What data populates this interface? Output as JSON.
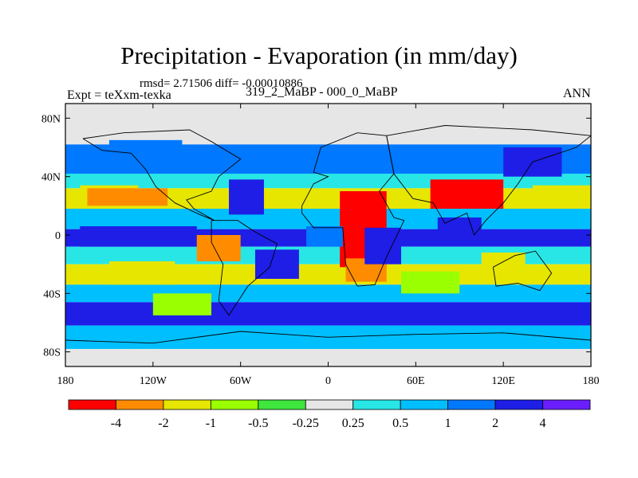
{
  "chart_data": {
    "type": "heatmap",
    "title": "Precipitation - Evaporation (in mm/day)",
    "subtitle": "rmsd= 2.71506 diff= -0.00010886",
    "left_label": "Expt = teXxm-texka",
    "center_label": "319_2_MaBP - 000_0_MaBP",
    "right_label": "ANN",
    "x_ticks": [
      {
        "value": -180,
        "label": "180"
      },
      {
        "value": -120,
        "label": "120W"
      },
      {
        "value": -60,
        "label": "60W"
      },
      {
        "value": 0,
        "label": "0"
      },
      {
        "value": 60,
        "label": "60E"
      },
      {
        "value": 120,
        "label": "120E"
      },
      {
        "value": 180,
        "label": "180"
      }
    ],
    "y_ticks": [
      {
        "value": 80,
        "label": "80N"
      },
      {
        "value": 40,
        "label": "40N"
      },
      {
        "value": 0,
        "label": "0"
      },
      {
        "value": -40,
        "label": "40S"
      },
      {
        "value": -80,
        "label": "80S"
      }
    ],
    "xlim": [
      -180,
      180
    ],
    "ylim": [
      -90,
      90
    ],
    "colorbar": {
      "colors": [
        "#ff0000",
        "#ff8c00",
        "#e6e600",
        "#9aff00",
        "#3ee63e",
        "#e6e6e6",
        "#28e6e6",
        "#00bfff",
        "#0078ff",
        "#1e1ee6",
        "#6a1eff"
      ],
      "levels": [
        "-4",
        "-2",
        "-1",
        "-0.5",
        "-0.25",
        "0.25",
        "0.5",
        "1",
        "2",
        "4"
      ]
    },
    "field_bands": [
      {
        "lat_min": 62,
        "lat_max": 90,
        "value": 0.0
      },
      {
        "lat_min": 42,
        "lat_max": 62,
        "value": 1.2
      },
      {
        "lat_min": 32,
        "lat_max": 42,
        "value": 0.4
      },
      {
        "lat_min": 18,
        "lat_max": 32,
        "value": -1.5
      },
      {
        "lat_min": 4,
        "lat_max": 18,
        "value": 0.8
      },
      {
        "lat_min": -8,
        "lat_max": 4,
        "value": 3.0
      },
      {
        "lat_min": -20,
        "lat_max": -8,
        "value": 0.3
      },
      {
        "lat_min": -34,
        "lat_max": -20,
        "value": -1.2
      },
      {
        "lat_min": -46,
        "lat_max": -34,
        "value": 0.6
      },
      {
        "lat_min": -62,
        "lat_max": -46,
        "value": 2.5
      },
      {
        "lat_min": -78,
        "lat_max": -62,
        "value": 0.8
      },
      {
        "lat_min": -90,
        "lat_max": -78,
        "value": 0.0
      }
    ],
    "field_regions": [
      {
        "lon": [
          -170,
          -130
        ],
        "lat": [
          18,
          34
        ],
        "value": -1.5
      },
      {
        "lon": [
          -165,
          -110
        ],
        "lat": [
          20,
          32
        ],
        "value": -2.5
      },
      {
        "lon": [
          -150,
          -105
        ],
        "lat": [
          -34,
          -18
        ],
        "value": -1.2
      },
      {
        "lon": [
          -50,
          -20
        ],
        "lat": [
          -30,
          -10
        ],
        "value": 3.0
      },
      {
        "lon": [
          -68,
          -44
        ],
        "lat": [
          14,
          38
        ],
        "value": 3.0
      },
      {
        "lon": [
          -150,
          -100
        ],
        "lat": [
          48,
          65
        ],
        "value": 1.5
      },
      {
        "lon": [
          -170,
          -90
        ],
        "lat": [
          -8,
          6
        ],
        "value": 3.0
      },
      {
        "lon": [
          8,
          40
        ],
        "lat": [
          -22,
          30
        ],
        "value": -4.5
      },
      {
        "lon": [
          12,
          40
        ],
        "lat": [
          -32,
          -16
        ],
        "value": -3.0
      },
      {
        "lon": [
          25,
          50
        ],
        "lat": [
          -20,
          5
        ],
        "value": 3.5
      },
      {
        "lon": [
          70,
          120
        ],
        "lat": [
          18,
          38
        ],
        "value": -4.5
      },
      {
        "lon": [
          75,
          105
        ],
        "lat": [
          -4,
          12
        ],
        "value": 3.0
      },
      {
        "lon": [
          105,
          135
        ],
        "lat": [
          -25,
          -12
        ],
        "value": -2.0
      },
      {
        "lon": [
          140,
          180
        ],
        "lat": [
          20,
          34
        ],
        "value": -2.0
      },
      {
        "lon": [
          -15,
          10
        ],
        "lat": [
          -8,
          6
        ],
        "value": 1.5
      },
      {
        "lon": [
          50,
          90
        ],
        "lat": [
          -40,
          -25
        ],
        "value": -0.7
      },
      {
        "lon": [
          -90,
          -60
        ],
        "lat": [
          -18,
          0
        ],
        "value": -3.0
      },
      {
        "lon": [
          -120,
          -80
        ],
        "lat": [
          -55,
          -40
        ],
        "value": -1.0
      },
      {
        "lon": [
          120,
          160
        ],
        "lat": [
          40,
          60
        ],
        "value": 3.5
      }
    ],
    "continent_outlines": [
      {
        "name": "north-america",
        "lonlat": [
          [
            -168,
            66
          ],
          [
            -140,
            70
          ],
          [
            -95,
            72
          ],
          [
            -80,
            64
          ],
          [
            -60,
            52
          ],
          [
            -75,
            40
          ],
          [
            -80,
            30
          ],
          [
            -97,
            24
          ],
          [
            -92,
            18
          ],
          [
            -78,
            10
          ],
          [
            -88,
            14
          ],
          [
            -105,
            22
          ],
          [
            -118,
            33
          ],
          [
            -125,
            45
          ],
          [
            -135,
            56
          ],
          [
            -155,
            58
          ],
          [
            -168,
            66
          ]
        ]
      },
      {
        "name": "south-america",
        "lonlat": [
          [
            -80,
            10
          ],
          [
            -62,
            10
          ],
          [
            -50,
            2
          ],
          [
            -35,
            -6
          ],
          [
            -40,
            -22
          ],
          [
            -55,
            -35
          ],
          [
            -68,
            -55
          ],
          [
            -75,
            -45
          ],
          [
            -72,
            -20
          ],
          [
            -80,
            -5
          ],
          [
            -80,
            10
          ]
        ]
      },
      {
        "name": "africa-europe",
        "lonlat": [
          [
            -18,
            20
          ],
          [
            -10,
            35
          ],
          [
            0,
            40
          ],
          [
            -10,
            43
          ],
          [
            -5,
            60
          ],
          [
            20,
            70
          ],
          [
            40,
            68
          ],
          [
            45,
            42
          ],
          [
            35,
            30
          ],
          [
            45,
            12
          ],
          [
            52,
            10
          ],
          [
            40,
            -15
          ],
          [
            32,
            -34
          ],
          [
            20,
            -35
          ],
          [
            12,
            -20
          ],
          [
            10,
            5
          ],
          [
            -10,
            5
          ],
          [
            -18,
            15
          ],
          [
            -18,
            20
          ]
        ]
      },
      {
        "name": "asia",
        "lonlat": [
          [
            40,
            68
          ],
          [
            80,
            75
          ],
          [
            140,
            72
          ],
          [
            180,
            68
          ],
          [
            170,
            60
          ],
          [
            140,
            50
          ],
          [
            130,
            35
          ],
          [
            120,
            22
          ],
          [
            108,
            10
          ],
          [
            100,
            0
          ],
          [
            95,
            15
          ],
          [
            80,
            8
          ],
          [
            72,
            22
          ],
          [
            58,
            25
          ],
          [
            45,
            42
          ],
          [
            40,
            68
          ]
        ]
      },
      {
        "name": "australia",
        "lonlat": [
          [
            113,
            -22
          ],
          [
            128,
            -14
          ],
          [
            142,
            -11
          ],
          [
            153,
            -26
          ],
          [
            145,
            -38
          ],
          [
            130,
            -33
          ],
          [
            115,
            -35
          ],
          [
            113,
            -22
          ]
        ]
      },
      {
        "name": "antarctica",
        "lonlat": [
          [
            -180,
            -72
          ],
          [
            -120,
            -74
          ],
          [
            -60,
            -66
          ],
          [
            0,
            -70
          ],
          [
            60,
            -68
          ],
          [
            120,
            -67
          ],
          [
            180,
            -72
          ]
        ]
      }
    ]
  }
}
